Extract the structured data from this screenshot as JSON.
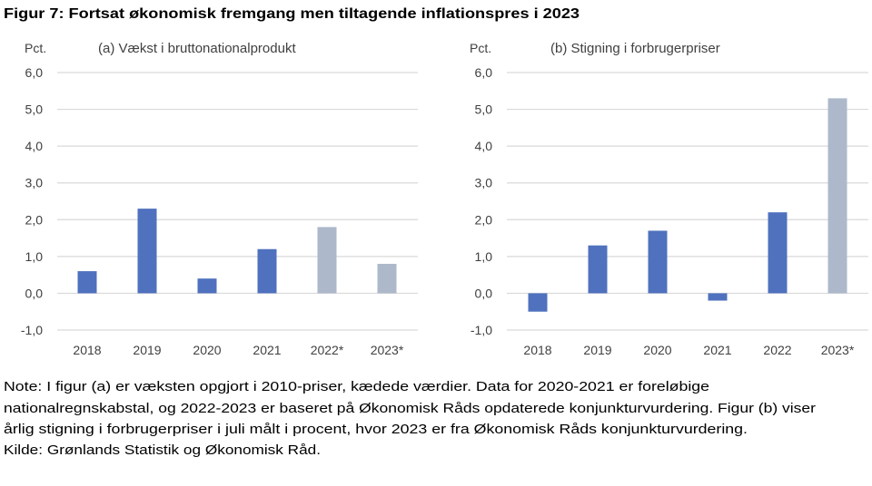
{
  "title": "Figur 7: Fortsat økonomisk fremgang men tiltagende inflationspres i 2023",
  "colors": {
    "actual": "#4f71be",
    "forecast": "#adb9ca",
    "grid": "#d9d9d9"
  },
  "chart_data": [
    {
      "type": "bar",
      "title": "(a) Vækst i bruttonationalprodukt",
      "ylabel": "Pct.",
      "categories": [
        "2018",
        "2019",
        "2020",
        "2021",
        "2022*",
        "2023*"
      ],
      "values": [
        0.6,
        2.3,
        0.4,
        1.2,
        1.8,
        0.8
      ],
      "forecast": [
        false,
        false,
        false,
        false,
        true,
        true
      ],
      "ylim": [
        -1,
        6
      ],
      "yticks": [
        "-1,0",
        "0,0",
        "1,0",
        "2,0",
        "3,0",
        "4,0",
        "5,0",
        "6,0"
      ],
      "grid": true
    },
    {
      "type": "bar",
      "title": "(b) Stigning i forbrugerpriser",
      "ylabel": "Pct.",
      "categories": [
        "2018",
        "2019",
        "2020",
        "2021",
        "2022",
        "2023*"
      ],
      "values": [
        -0.5,
        1.3,
        1.7,
        -0.2,
        2.2,
        5.3
      ],
      "forecast": [
        false,
        false,
        false,
        false,
        false,
        true
      ],
      "ylim": [
        -1,
        6
      ],
      "yticks": [
        "-1,0",
        "0,0",
        "1,0",
        "2,0",
        "3,0",
        "4,0",
        "5,0",
        "6,0"
      ],
      "grid": true
    }
  ],
  "note": {
    "lines": [
      "Note: I figur (a) er væksten opgjort i 2010-priser, kædede værdier. Data for 2020-2021 er foreløbige",
      "nationalregnskabstal, og 2022-2023 er baseret på Økonomisk Råds opdaterede konjunkturvurdering. Figur (b) viser",
      "årlig stigning i forbrugerpriser i juli målt i procent, hvor 2023 er fra Økonomisk Råds konjunkturvurdering.",
      "Kilde: Grønlands Statistik og Økonomisk Råd."
    ]
  }
}
